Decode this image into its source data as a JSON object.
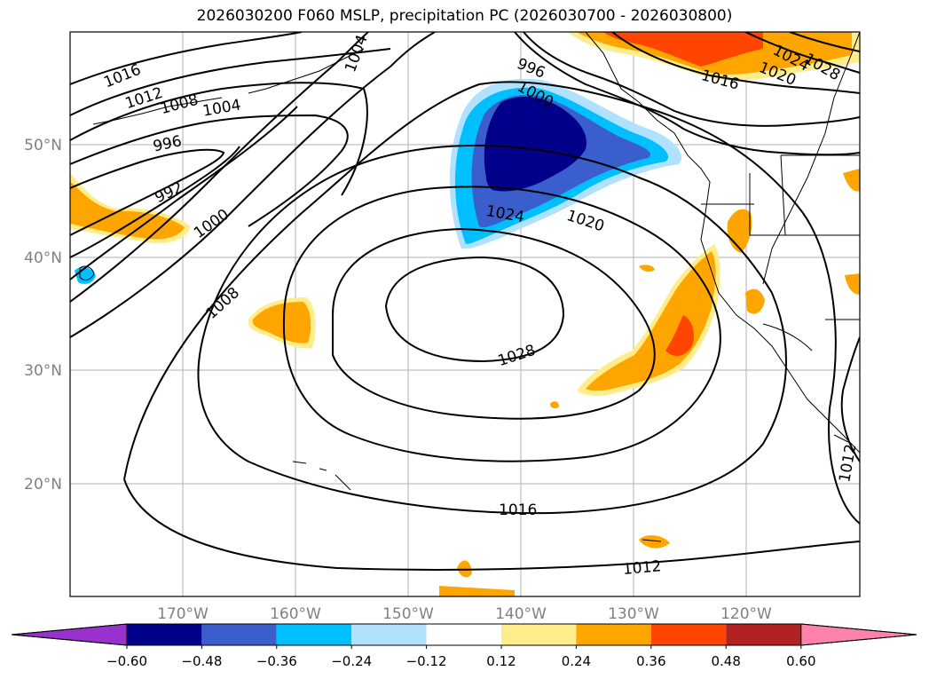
{
  "title": "2026030200 F060 MSLP, precipitation PC (2026030700 - 2026030800)",
  "lon_labels": [
    "170°W",
    "160°W",
    "150°W",
    "140°W",
    "130°W",
    "120°W"
  ],
  "lat_labels": [
    "50°N",
    "40°N",
    "30°N",
    "20°N"
  ],
  "isobar_labels": [
    {
      "text": "1016"
    },
    {
      "text": "1012"
    },
    {
      "text": "1008"
    },
    {
      "text": "1004"
    },
    {
      "text": "1004"
    },
    {
      "text": "996"
    },
    {
      "text": "992"
    },
    {
      "text": "1000"
    },
    {
      "text": "1008"
    },
    {
      "text": "996"
    },
    {
      "text": "1000"
    },
    {
      "text": "1024"
    },
    {
      "text": "1020"
    },
    {
      "text": "1028"
    },
    {
      "text": "1016"
    },
    {
      "text": "1012"
    },
    {
      "text": "1012"
    },
    {
      "text": "1016"
    },
    {
      "text": "1020"
    },
    {
      "text": "1024"
    },
    {
      "text": "1028"
    }
  ],
  "colorbar": {
    "colors": [
      "#9932cc",
      "#00008b",
      "#3a5fcd",
      "#00bfff",
      "#b0e2ff",
      "#ffffff",
      "#ffec8b",
      "#ffa500",
      "#ff4500",
      "#b22222",
      "#ff82ab"
    ],
    "tick_labels": [
      "−0.60",
      "−0.48",
      "−0.36",
      "−0.24",
      "−0.12",
      "0.12",
      "0.24",
      "0.36",
      "0.48",
      "0.60"
    ]
  }
}
